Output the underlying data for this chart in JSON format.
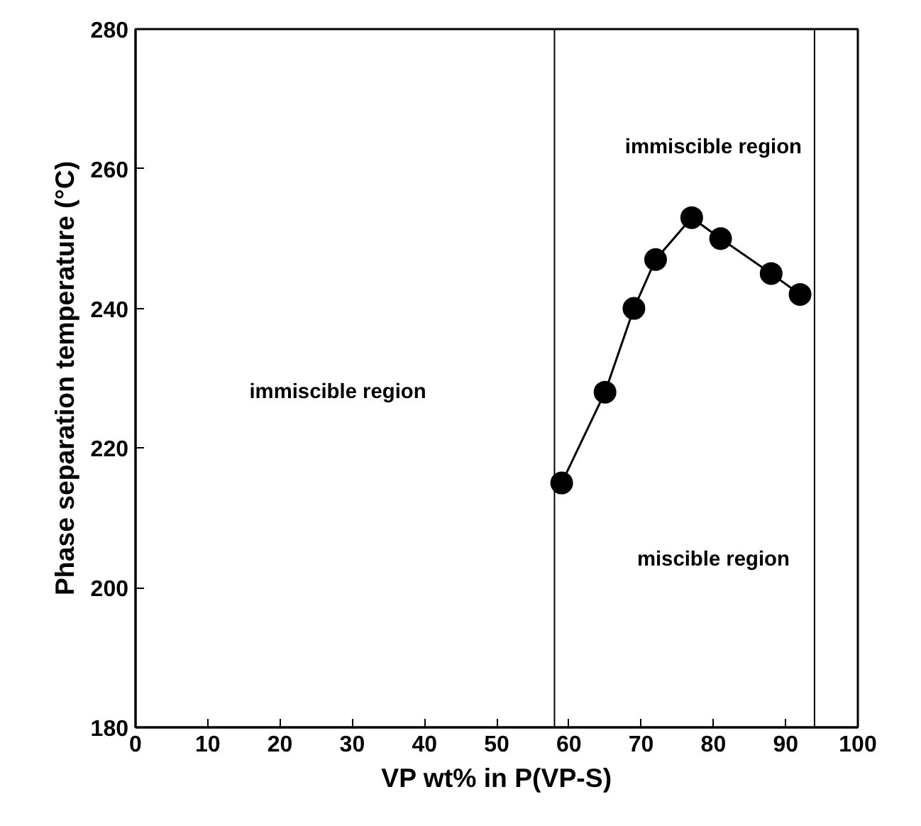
{
  "chart_data": {
    "type": "line",
    "xlabel": "VP wt% in P(VP-S)",
    "ylabel": "Phase separation temperature (°C)",
    "x": [
      59,
      65,
      69,
      72,
      77,
      81,
      88,
      92
    ],
    "series": [
      {
        "color": "#000000",
        "values": [
          215,
          228,
          240,
          247,
          253,
          250,
          245,
          242
        ]
      }
    ],
    "xlim": [
      0,
      100
    ],
    "xticks": [
      0,
      10,
      20,
      30,
      40,
      50,
      60,
      70,
      80,
      90,
      100
    ],
    "ylim": [
      180,
      280
    ],
    "yticks": [
      180,
      200,
      220,
      240,
      260,
      280
    ],
    "ref_lines": [
      {
        "axis": "x",
        "value": 58,
        "color": "#000000"
      },
      {
        "axis": "x",
        "value": 94,
        "color": "#000000"
      }
    ],
    "annotations": [
      "immiscible region",
      "immiscible region",
      "miscible region"
    ],
    "marker": "circle",
    "line_style": "solid"
  }
}
